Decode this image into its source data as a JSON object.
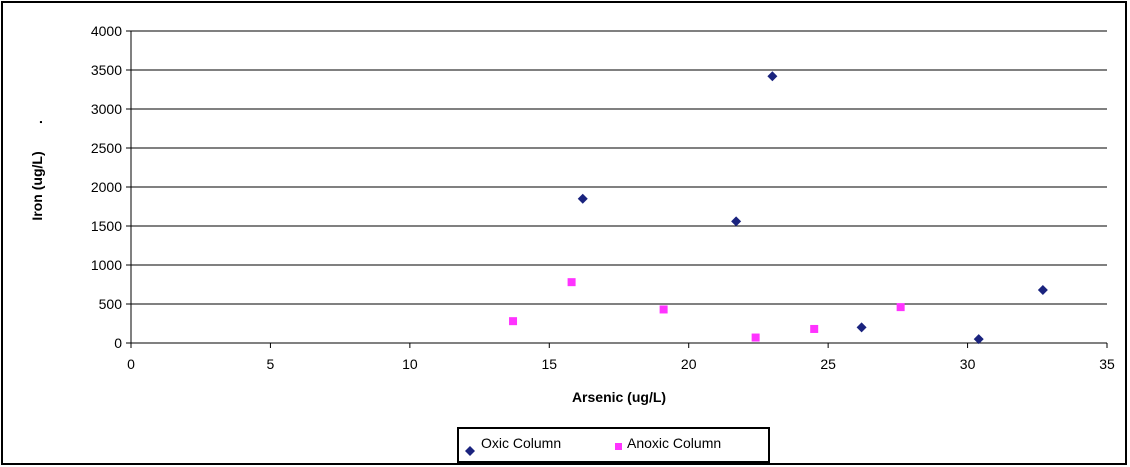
{
  "chart_data": {
    "type": "scatter",
    "title": "",
    "xlabel": "Arsenic (ug/L)",
    "ylabel": "Iron (ug/L)",
    "ylabel_suffix": ".",
    "xlim": [
      0,
      35
    ],
    "ylim": [
      0,
      4000
    ],
    "x_ticks": [
      0,
      5,
      10,
      15,
      20,
      25,
      30,
      35
    ],
    "y_ticks": [
      0,
      500,
      1000,
      1500,
      2000,
      2500,
      3000,
      3500,
      4000
    ],
    "grid": "horizontal",
    "legend_position": "bottom",
    "series": [
      {
        "name": "Oxic Column",
        "marker": "diamond",
        "color": "#1a237e",
        "points": [
          {
            "x": 16.2,
            "y": 1850
          },
          {
            "x": 21.7,
            "y": 1560
          },
          {
            "x": 23.0,
            "y": 3420
          },
          {
            "x": 26.2,
            "y": 200
          },
          {
            "x": 30.4,
            "y": 50
          },
          {
            "x": 32.7,
            "y": 680
          }
        ]
      },
      {
        "name": "Anoxic Column",
        "marker": "square",
        "color": "#ff33ff",
        "points": [
          {
            "x": 13.7,
            "y": 280
          },
          {
            "x": 15.8,
            "y": 780
          },
          {
            "x": 19.1,
            "y": 430
          },
          {
            "x": 22.4,
            "y": 70
          },
          {
            "x": 24.5,
            "y": 180
          },
          {
            "x": 27.6,
            "y": 460
          }
        ]
      }
    ]
  }
}
